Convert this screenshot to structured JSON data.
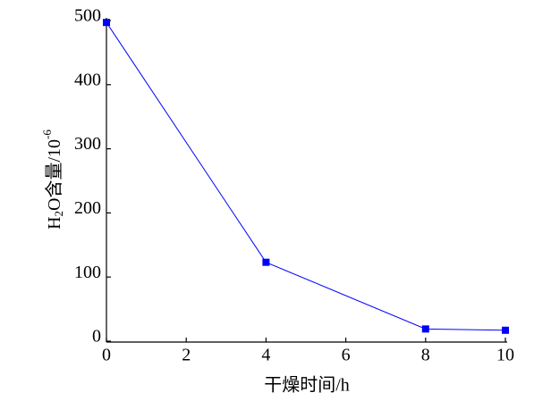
{
  "chart_data": {
    "type": "line",
    "ylabel": [
      "H",
      "2",
      "O含量/10",
      "-6"
    ],
    "xlabel": "干燥时间/h",
    "x": [
      0,
      4,
      8,
      10
    ],
    "series": [
      {
        "color": "#0000ff",
        "values": [
          497,
          123,
          19,
          17
        ]
      }
    ],
    "xlim": [
      0,
      10
    ],
    "xticks": [
      0,
      2,
      4,
      6,
      8,
      10
    ],
    "ylim": [
      0,
      500
    ],
    "yticks": [
      0,
      100,
      200,
      300,
      400,
      500
    ],
    "grid": false
  }
}
